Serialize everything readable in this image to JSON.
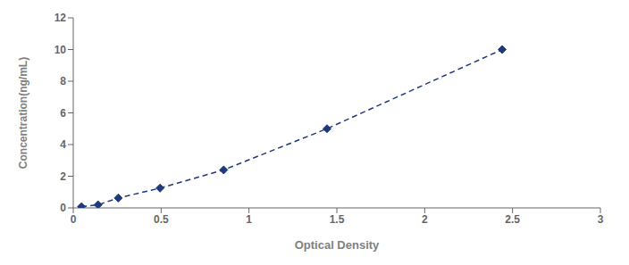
{
  "chart_data": {
    "type": "line",
    "x": [
      0.047,
      0.141,
      0.256,
      0.494,
      0.856,
      1.444,
      2.441
    ],
    "values": [
      0.078,
      0.195,
      0.625,
      1.25,
      2.4,
      5.0,
      10.0
    ],
    "xlabel": "Optical Density",
    "ylabel": "Concentration(ng/mL)",
    "xlim": [
      0,
      3
    ],
    "ylim": [
      0,
      12
    ],
    "xticks": [
      0,
      0.5,
      1,
      1.5,
      2,
      2.5,
      3
    ],
    "yticks": [
      0,
      2,
      4,
      6,
      8,
      10,
      12
    ],
    "color": "#1F3A7A",
    "marker": "diamond",
    "line_style": "dashed"
  }
}
